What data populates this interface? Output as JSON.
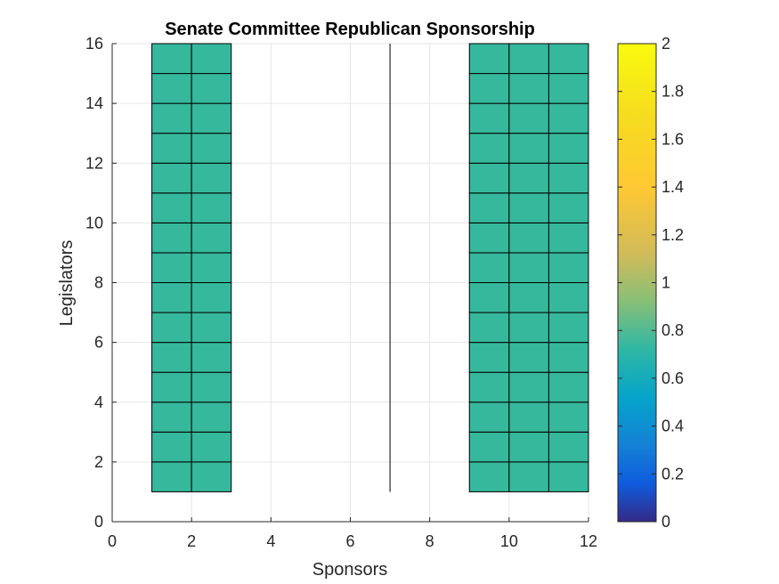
{
  "chart_data": {
    "type": "heatmap",
    "title": "Senate Committee Republican Sponsorship",
    "xlabel": "Sponsors",
    "ylabel": "Legislators",
    "xlim": [
      0,
      12
    ],
    "ylim": [
      0,
      16
    ],
    "xticks": [
      0,
      2,
      4,
      6,
      8,
      10,
      12
    ],
    "yticks": [
      0,
      2,
      4,
      6,
      8,
      10,
      12,
      14,
      16
    ],
    "grid": true,
    "clim": [
      0,
      2
    ],
    "colorbar_ticks": [
      "0",
      "0.2",
      "0.4",
      "0.6",
      "0.8",
      "1",
      "1.2",
      "1.4",
      "1.6",
      "1.8",
      "2"
    ],
    "colormap": "parula",
    "cell_color": "#35b89c",
    "cell_value": 1,
    "blocks": [
      {
        "x_range": [
          1,
          3
        ],
        "y_range": [
          1,
          16
        ],
        "value": 1
      },
      {
        "x_range": [
          9,
          12
        ],
        "y_range": [
          1,
          16
        ],
        "value": 1
      }
    ],
    "vertical_line": {
      "x": 7,
      "y_range": [
        1,
        16
      ]
    }
  }
}
